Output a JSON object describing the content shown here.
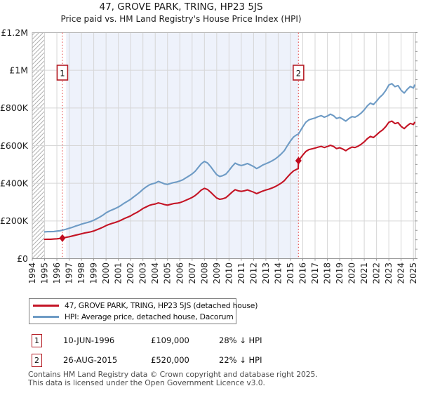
{
  "title": "47, GROVE PARK, TRING, HP23 5JS",
  "subtitle": "Price paid vs. HM Land Registry's House Price Index (HPI)",
  "chart_data": {
    "type": "line",
    "values_unit": "GBP thousands",
    "x_axis": {
      "min": 1994,
      "max": 2025.16,
      "ticks": [
        1994,
        1995,
        1996,
        1997,
        1998,
        1999,
        2000,
        2001,
        2002,
        2003,
        2004,
        2005,
        2006,
        2007,
        2008,
        2009,
        2010,
        2011,
        2012,
        2013,
        2014,
        2015,
        2016,
        2017,
        2018,
        2019,
        2020,
        2021,
        2022,
        2023,
        2024,
        2025
      ]
    },
    "y_axis": {
      "min": 0,
      "max": 1200,
      "minor_tick_step": 50,
      "ticks": [
        {
          "v": 0,
          "label": "£0"
        },
        {
          "v": 200,
          "label": "£200K"
        },
        {
          "v": 400,
          "label": "£400K"
        },
        {
          "v": 600,
          "label": "£600K"
        },
        {
          "v": 800,
          "label": "£800K"
        },
        {
          "v": 1000,
          "label": "£1M"
        },
        {
          "v": 1200,
          "label": "£1.2M"
        }
      ]
    },
    "grid_color": "#d6d6d6",
    "shade_color": "#eef2fb",
    "hatch_region": {
      "from": 1994,
      "to": 1995
    },
    "shaded_region": {
      "from": 1996.75,
      "to": 2015.65
    },
    "sale_marker_line_color": "#e85c5c",
    "sale_marker_box_color": "#b51c24",
    "sale_point_color": "#c00a1e",
    "sale_markers": [
      {
        "label": "1",
        "year": 1996.45,
        "value": 109
      },
      {
        "label": "2",
        "year": 2015.65,
        "value": 520
      }
    ],
    "series": [
      {
        "name": "price-paid",
        "color": "#c41425",
        "points": [
          [
            1995,
            102
          ],
          [
            1995.25,
            103
          ],
          [
            1995.5,
            103
          ],
          [
            1995.75,
            104
          ],
          [
            1996,
            105
          ],
          [
            1996.25,
            107
          ],
          [
            1996.45,
            109
          ],
          [
            1996.75,
            113
          ],
          [
            1997,
            116
          ],
          [
            1997.25,
            120
          ],
          [
            1997.5,
            124
          ],
          [
            1997.75,
            128
          ],
          [
            1998,
            132
          ],
          [
            1998.25,
            136
          ],
          [
            1998.5,
            139
          ],
          [
            1998.75,
            142
          ],
          [
            1999,
            147
          ],
          [
            1999.25,
            153
          ],
          [
            1999.5,
            160
          ],
          [
            1999.75,
            167
          ],
          [
            2000,
            175
          ],
          [
            2000.25,
            182
          ],
          [
            2000.5,
            187
          ],
          [
            2000.75,
            192
          ],
          [
            2001,
            198
          ],
          [
            2001.25,
            205
          ],
          [
            2001.5,
            213
          ],
          [
            2001.75,
            220
          ],
          [
            2002,
            227
          ],
          [
            2002.25,
            237
          ],
          [
            2002.5,
            245
          ],
          [
            2002.75,
            255
          ],
          [
            2003,
            266
          ],
          [
            2003.25,
            274
          ],
          [
            2003.5,
            282
          ],
          [
            2003.75,
            287
          ],
          [
            2004,
            290
          ],
          [
            2004.25,
            296
          ],
          [
            2004.5,
            292
          ],
          [
            2004.75,
            287
          ],
          [
            2005,
            284
          ],
          [
            2005.25,
            288
          ],
          [
            2005.5,
            292
          ],
          [
            2005.75,
            294
          ],
          [
            2006,
            297
          ],
          [
            2006.25,
            303
          ],
          [
            2006.5,
            310
          ],
          [
            2006.75,
            317
          ],
          [
            2007,
            325
          ],
          [
            2007.25,
            335
          ],
          [
            2007.5,
            349
          ],
          [
            2007.75,
            364
          ],
          [
            2008,
            373
          ],
          [
            2008.25,
            367
          ],
          [
            2008.5,
            353
          ],
          [
            2008.75,
            337
          ],
          [
            2009,
            322
          ],
          [
            2009.25,
            315
          ],
          [
            2009.5,
            318
          ],
          [
            2009.75,
            324
          ],
          [
            2010,
            338
          ],
          [
            2010.25,
            353
          ],
          [
            2010.5,
            366
          ],
          [
            2010.75,
            360
          ],
          [
            2011,
            357
          ],
          [
            2011.25,
            360
          ],
          [
            2011.5,
            365
          ],
          [
            2011.75,
            359
          ],
          [
            2012,
            353
          ],
          [
            2012.25,
            345
          ],
          [
            2012.5,
            352
          ],
          [
            2012.75,
            359
          ],
          [
            2013,
            364
          ],
          [
            2013.25,
            369
          ],
          [
            2013.5,
            375
          ],
          [
            2013.75,
            382
          ],
          [
            2014,
            391
          ],
          [
            2014.25,
            401
          ],
          [
            2014.5,
            414
          ],
          [
            2014.75,
            433
          ],
          [
            2015,
            451
          ],
          [
            2015.25,
            466
          ],
          [
            2015.5,
            474
          ],
          [
            2015.63,
            478
          ],
          [
            2015.65,
            520
          ],
          [
            2016,
            550
          ],
          [
            2016.25,
            569
          ],
          [
            2016.5,
            579
          ],
          [
            2016.75,
            583
          ],
          [
            2017,
            587
          ],
          [
            2017.25,
            592
          ],
          [
            2017.5,
            596
          ],
          [
            2017.75,
            590
          ],
          [
            2018,
            595
          ],
          [
            2018.25,
            602
          ],
          [
            2018.5,
            596
          ],
          [
            2018.75,
            584
          ],
          [
            2019,
            589
          ],
          [
            2019.25,
            582
          ],
          [
            2019.5,
            573
          ],
          [
            2019.75,
            584
          ],
          [
            2020,
            592
          ],
          [
            2020.25,
            590
          ],
          [
            2020.5,
            597
          ],
          [
            2020.75,
            607
          ],
          [
            2021,
            620
          ],
          [
            2021.25,
            637
          ],
          [
            2021.5,
            649
          ],
          [
            2021.75,
            643
          ],
          [
            2022,
            657
          ],
          [
            2022.25,
            672
          ],
          [
            2022.5,
            684
          ],
          [
            2022.75,
            701
          ],
          [
            2023,
            724
          ],
          [
            2023.25,
            730
          ],
          [
            2023.5,
            717
          ],
          [
            2023.75,
            722
          ],
          [
            2024,
            702
          ],
          [
            2024.25,
            690
          ],
          [
            2024.5,
            706
          ],
          [
            2024.75,
            718
          ],
          [
            2025,
            712
          ],
          [
            2025.1,
            723
          ]
        ]
      },
      {
        "name": "hpi",
        "color": "#6e9bc5",
        "points": [
          [
            1995,
            142
          ],
          [
            1995.25,
            143
          ],
          [
            1995.5,
            143
          ],
          [
            1995.75,
            144
          ],
          [
            1996,
            146
          ],
          [
            1996.25,
            148
          ],
          [
            1996.45,
            151
          ],
          [
            1996.75,
            156
          ],
          [
            1997,
            161
          ],
          [
            1997.25,
            166
          ],
          [
            1997.5,
            172
          ],
          [
            1997.75,
            177
          ],
          [
            1998,
            183
          ],
          [
            1998.25,
            188
          ],
          [
            1998.5,
            192
          ],
          [
            1998.75,
            197
          ],
          [
            1999,
            204
          ],
          [
            1999.25,
            212
          ],
          [
            1999.5,
            221
          ],
          [
            1999.75,
            231
          ],
          [
            2000,
            243
          ],
          [
            2000.25,
            252
          ],
          [
            2000.5,
            259
          ],
          [
            2000.75,
            266
          ],
          [
            2001,
            274
          ],
          [
            2001.25,
            284
          ],
          [
            2001.5,
            295
          ],
          [
            2001.75,
            305
          ],
          [
            2002,
            315
          ],
          [
            2002.25,
            328
          ],
          [
            2002.5,
            340
          ],
          [
            2002.75,
            353
          ],
          [
            2003,
            368
          ],
          [
            2003.25,
            380
          ],
          [
            2003.5,
            391
          ],
          [
            2003.75,
            397
          ],
          [
            2004,
            401
          ],
          [
            2004.25,
            410
          ],
          [
            2004.5,
            404
          ],
          [
            2004.75,
            397
          ],
          [
            2005,
            394
          ],
          [
            2005.25,
            399
          ],
          [
            2005.5,
            404
          ],
          [
            2005.75,
            407
          ],
          [
            2006,
            412
          ],
          [
            2006.25,
            419
          ],
          [
            2006.5,
            429
          ],
          [
            2006.75,
            439
          ],
          [
            2007,
            450
          ],
          [
            2007.25,
            464
          ],
          [
            2007.5,
            484
          ],
          [
            2007.75,
            504
          ],
          [
            2008,
            516
          ],
          [
            2008.25,
            508
          ],
          [
            2008.5,
            489
          ],
          [
            2008.75,
            467
          ],
          [
            2009,
            446
          ],
          [
            2009.25,
            436
          ],
          [
            2009.5,
            441
          ],
          [
            2009.75,
            449
          ],
          [
            2010,
            468
          ],
          [
            2010.25,
            489
          ],
          [
            2010.5,
            507
          ],
          [
            2010.75,
            499
          ],
          [
            2011,
            494
          ],
          [
            2011.25,
            499
          ],
          [
            2011.5,
            505
          ],
          [
            2011.75,
            497
          ],
          [
            2012,
            489
          ],
          [
            2012.25,
            478
          ],
          [
            2012.5,
            487
          ],
          [
            2012.75,
            497
          ],
          [
            2013,
            504
          ],
          [
            2013.25,
            511
          ],
          [
            2013.5,
            519
          ],
          [
            2013.75,
            529
          ],
          [
            2014,
            541
          ],
          [
            2014.25,
            556
          ],
          [
            2014.5,
            573
          ],
          [
            2014.75,
            600
          ],
          [
            2015,
            625
          ],
          [
            2015.25,
            646
          ],
          [
            2015.5,
            657
          ],
          [
            2015.65,
            662
          ],
          [
            2016,
            700
          ],
          [
            2016.25,
            724
          ],
          [
            2016.5,
            737
          ],
          [
            2016.75,
            742
          ],
          [
            2017,
            747
          ],
          [
            2017.25,
            754
          ],
          [
            2017.5,
            759
          ],
          [
            2017.75,
            751
          ],
          [
            2018,
            757
          ],
          [
            2018.25,
            767
          ],
          [
            2018.5,
            759
          ],
          [
            2018.75,
            744
          ],
          [
            2019,
            750
          ],
          [
            2019.25,
            741
          ],
          [
            2019.5,
            730
          ],
          [
            2019.75,
            744
          ],
          [
            2020,
            754
          ],
          [
            2020.25,
            751
          ],
          [
            2020.5,
            760
          ],
          [
            2020.75,
            773
          ],
          [
            2021,
            790
          ],
          [
            2021.25,
            811
          ],
          [
            2021.5,
            826
          ],
          [
            2021.75,
            818
          ],
          [
            2022,
            836
          ],
          [
            2022.25,
            856
          ],
          [
            2022.5,
            871
          ],
          [
            2022.75,
            893
          ],
          [
            2023,
            922
          ],
          [
            2023.25,
            929
          ],
          [
            2023.5,
            913
          ],
          [
            2023.75,
            919
          ],
          [
            2024,
            894
          ],
          [
            2024.25,
            879
          ],
          [
            2024.5,
            899
          ],
          [
            2024.75,
            914
          ],
          [
            2025,
            906
          ],
          [
            2025.1,
            921
          ]
        ]
      }
    ]
  },
  "legend": {
    "items": [
      {
        "label": "47, GROVE PARK, TRING, HP23 5JS (detached house)"
      },
      {
        "label": "HPI: Average price, detached house, Dacorum"
      }
    ]
  },
  "transactions": [
    {
      "num": "1",
      "date": "10-JUN-1996",
      "price": "£109,000",
      "vs_hpi": "28% ↓ HPI"
    },
    {
      "num": "2",
      "date": "26-AUG-2015",
      "price": "£520,000",
      "vs_hpi": "22% ↓ HPI"
    }
  ],
  "footer": {
    "line1": "Contains HM Land Registry data © Crown copyright and database right 2025.",
    "line2": "This data is licensed under the Open Government Licence v3.0."
  }
}
